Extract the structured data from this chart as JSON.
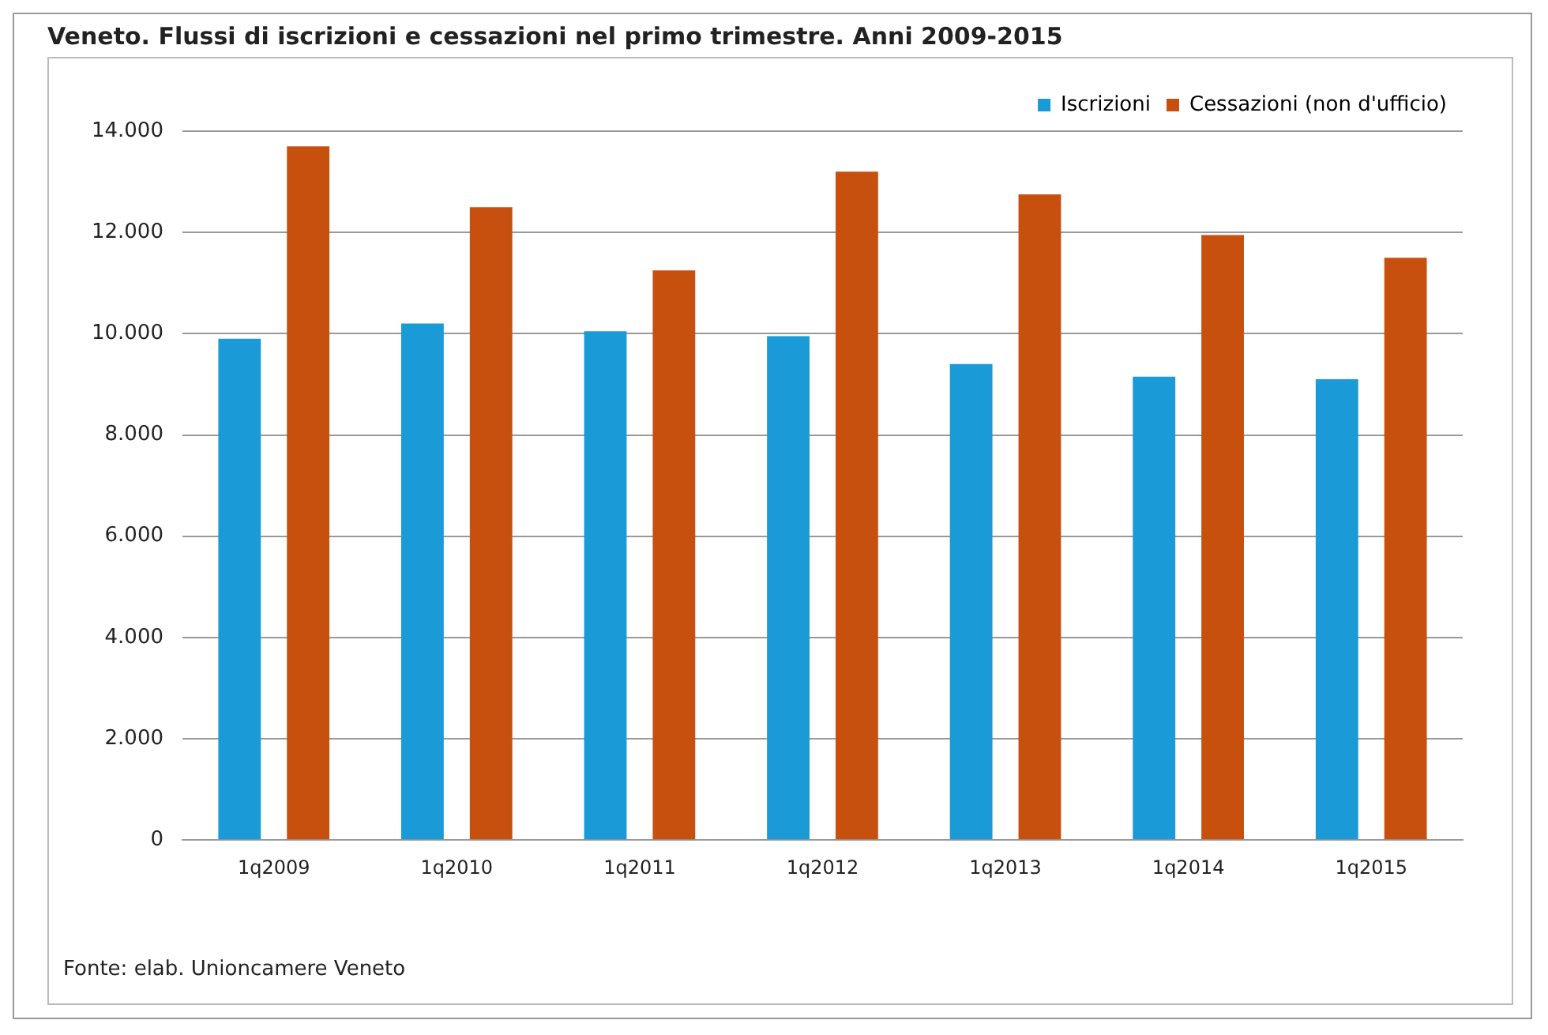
{
  "chart_data": {
    "type": "bar",
    "title": "Veneto. Flussi di iscrizioni e cessazioni nel primo trimestre. Anni 2009-2015",
    "categories": [
      "1q2009",
      "1q2010",
      "1q2011",
      "1q2012",
      "1q2013",
      "1q2014",
      "1q2015"
    ],
    "series": [
      {
        "name": "Iscrizioni",
        "color": "#1a9ad6",
        "values": [
          9900,
          10200,
          10050,
          9950,
          9400,
          9150,
          9100
        ]
      },
      {
        "name": "Cessazioni (non d'ufficio)",
        "color": "#c8500f",
        "values": [
          13700,
          12500,
          11250,
          13200,
          12750,
          11950,
          11500
        ]
      }
    ],
    "ylim": [
      0,
      14000
    ],
    "yticks": [
      0,
      {
        "value": 2000,
        "label": "2.000"
      },
      {
        "value": 4000,
        "label": "4.000"
      },
      {
        "value": 6000,
        "label": "6.000"
      },
      {
        "value": 8000,
        "label": "8.000"
      },
      {
        "value": 10000,
        "label": "10.000"
      },
      {
        "value": 12000,
        "label": "12.000"
      },
      {
        "value": 14000,
        "label": "14.000"
      }
    ],
    "grid": "y",
    "legend": "top right",
    "annotations": [
      "Fonte: elab. Unioncamere Veneto"
    ]
  }
}
